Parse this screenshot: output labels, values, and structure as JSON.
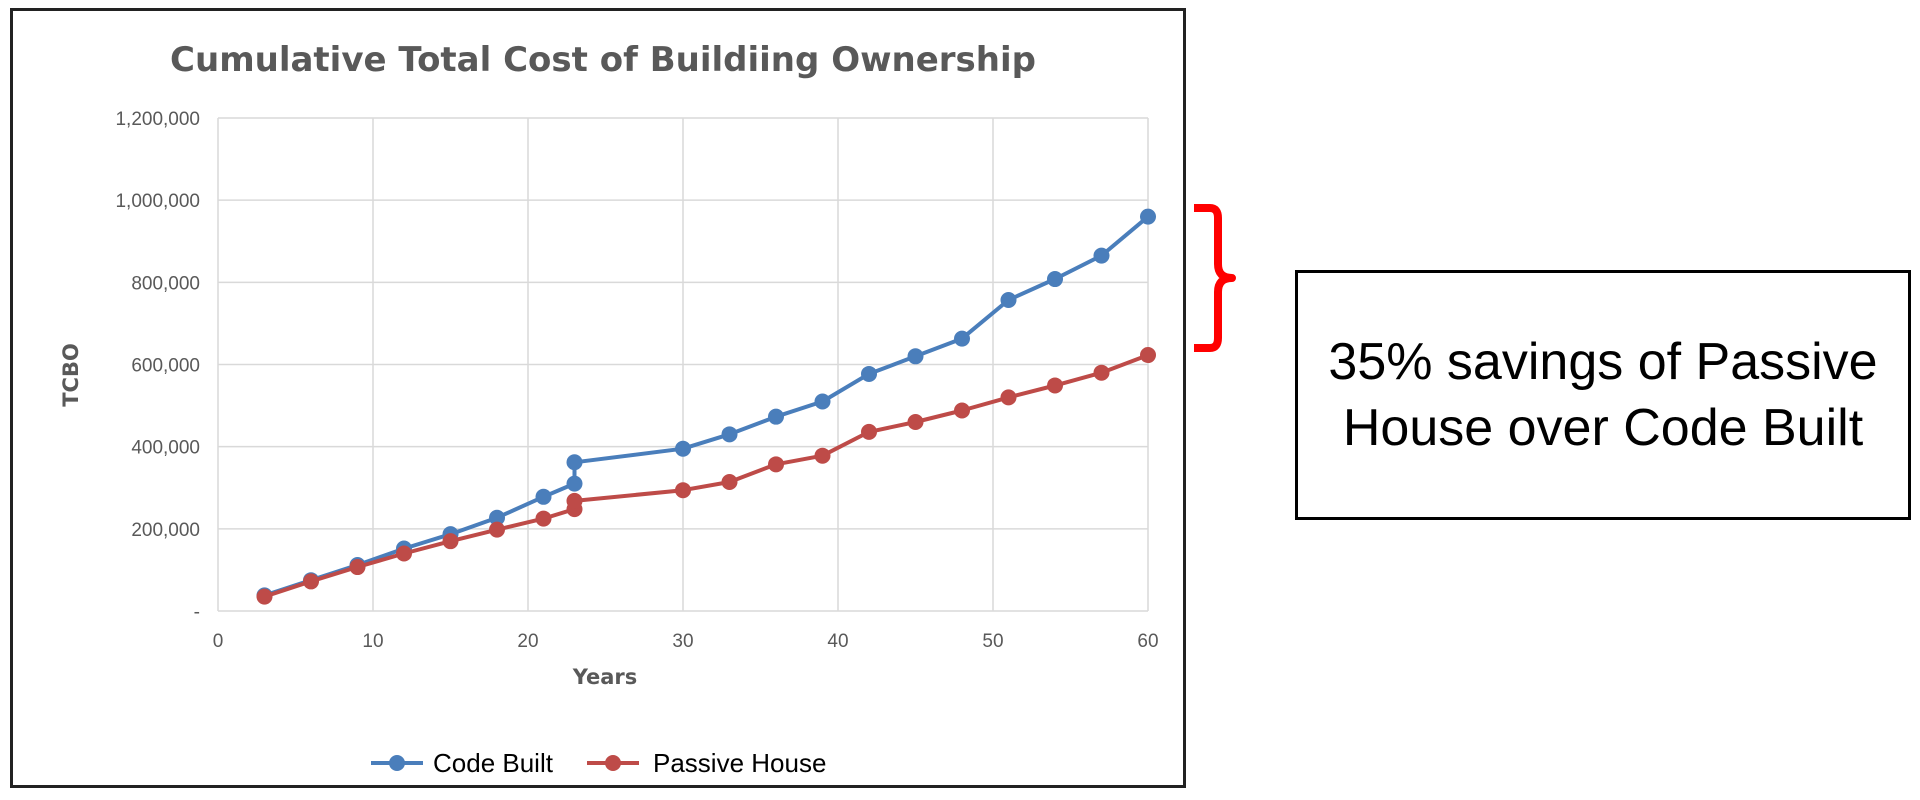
{
  "chart_data": {
    "type": "line",
    "title": "Cumulative Total Cost of Buildiing Ownership",
    "xlabel": "Years",
    "ylabel": "TCBO",
    "xlim": [
      0,
      60
    ],
    "ylim": [
      0,
      1200000
    ],
    "x_ticks": [
      0,
      10,
      20,
      30,
      40,
      50,
      60
    ],
    "y_ticks": [
      0,
      200000,
      400000,
      600000,
      800000,
      1000000,
      1200000
    ],
    "y_tick_labels": [
      "-",
      "200,000",
      "400,000",
      "600,000",
      "800,000",
      "1,000,000",
      "1,200,000"
    ],
    "grid": true,
    "legend_position": "bottom",
    "series": [
      {
        "name": "Code Built",
        "color": "#4a7ebb",
        "points": [
          [
            3,
            38000
          ],
          [
            6,
            75000
          ],
          [
            9,
            112000
          ],
          [
            12,
            152000
          ],
          [
            15,
            187000
          ],
          [
            18,
            227000
          ],
          [
            21,
            278000
          ],
          [
            23,
            310000
          ],
          [
            23,
            362000
          ],
          [
            30,
            395000
          ],
          [
            33,
            430000
          ],
          [
            36,
            473000
          ],
          [
            39,
            510000
          ],
          [
            42,
            577000
          ],
          [
            45,
            620000
          ],
          [
            48,
            663000
          ],
          [
            51,
            757000
          ],
          [
            54,
            808000
          ],
          [
            57,
            865000
          ],
          [
            60,
            960000
          ]
        ]
      },
      {
        "name": "Passive House",
        "color": "#be4b48",
        "points": [
          [
            3,
            35000
          ],
          [
            6,
            72000
          ],
          [
            9,
            107000
          ],
          [
            12,
            140000
          ],
          [
            15,
            170000
          ],
          [
            18,
            198000
          ],
          [
            21,
            225000
          ],
          [
            23,
            248000
          ],
          [
            23,
            268000
          ],
          [
            30,
            294000
          ],
          [
            33,
            314000
          ],
          [
            36,
            357000
          ],
          [
            39,
            378000
          ],
          [
            42,
            436000
          ],
          [
            45,
            460000
          ],
          [
            48,
            488000
          ],
          [
            51,
            520000
          ],
          [
            54,
            549000
          ],
          [
            57,
            580000
          ],
          [
            60,
            623000
          ]
        ]
      }
    ]
  },
  "callout": {
    "text": "35% savings of Passive House over Code Built",
    "bracket_color": "#ff0000"
  }
}
